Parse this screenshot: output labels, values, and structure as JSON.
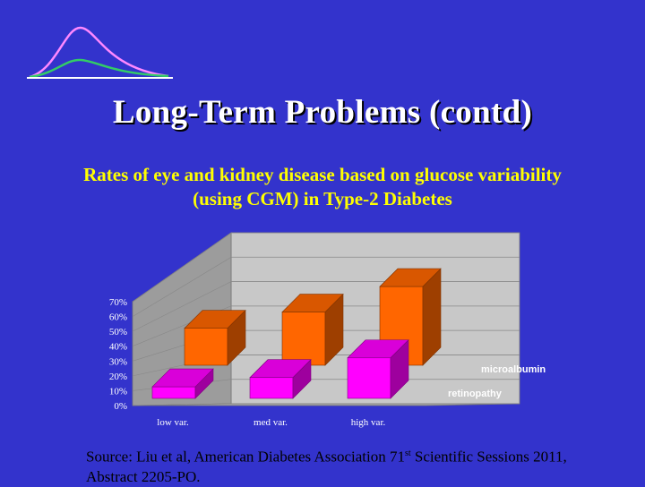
{
  "slide": {
    "title": "Long-Term Problems (contd)",
    "subtitle_line1": "Rates of eye and kidney disease based on glucose variability",
    "subtitle_line2": "(using CGM) in Type-2 Diabetes",
    "source_line1_pre": "Source: Liu et al, American Diabetes Association 71",
    "source_sup": "st",
    "source_line1_post": " Scientific Sessions 2011,",
    "source_line2": "Abstract 2205-PO."
  },
  "colors": {
    "background": "#3333cc",
    "title": "#ffffff",
    "subtitle": "#ffff00",
    "microalbumin": "#ff6600",
    "retinopathy": "#ff00ff",
    "logo_pink": "#ff88ff",
    "logo_green": "#33cc66"
  },
  "chart_data": {
    "type": "bar",
    "style": "3d",
    "categories": [
      "low var.",
      "med var.",
      "high var."
    ],
    "series": [
      {
        "name": "microalbumin",
        "values": [
          32,
          46,
          68
        ],
        "color": "#ff6600"
      },
      {
        "name": "retinopathy",
        "values": [
          10,
          18,
          35
        ],
        "color": "#ff00ff"
      }
    ],
    "yticks": [
      "0%",
      "10%",
      "20%",
      "30%",
      "40%",
      "50%",
      "60%",
      "70%"
    ],
    "ylim": [
      0,
      70
    ],
    "grid": true,
    "legend": "series labels at right of depth axis"
  }
}
